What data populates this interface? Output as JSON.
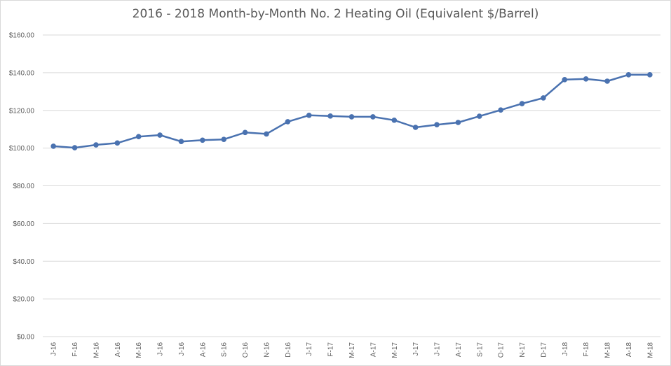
{
  "chart_data": {
    "type": "line",
    "title": "2016 - 2018 Month-by-Month No. 2 Heating Oil (Equivalent $/Barrel)",
    "xlabel": "",
    "ylabel": "",
    "ylim": [
      0,
      160
    ],
    "yticks": [
      "$0.00",
      "$20.00",
      "$40.00",
      "$60.00",
      "$80.00",
      "$100.00",
      "$120.00",
      "$140.00",
      "$160.00"
    ],
    "grid": true,
    "legend": "none",
    "categories": [
      "J-16",
      "F-16",
      "M-16",
      "A-16",
      "M-16",
      "J-16",
      "J-16",
      "A-16",
      "S-16",
      "O-16",
      "N-16",
      "D-16",
      "J-17",
      "F-17",
      "M-17",
      "A-17",
      "M-17",
      "J-17",
      "J-17",
      "A-17",
      "S-17",
      "O-17",
      "N-17",
      "D-17",
      "J-18",
      "F-18",
      "M-18",
      "A-18",
      "M-18"
    ],
    "series": [
      {
        "name": "",
        "color": "#4a72b0",
        "values": [
          101.0,
          100.2,
          101.7,
          102.7,
          106.1,
          106.9,
          103.5,
          104.2,
          104.6,
          108.3,
          107.5,
          114.0,
          117.4,
          117.0,
          116.6,
          116.6,
          114.8,
          111.0,
          112.4,
          113.6,
          116.9,
          120.2,
          123.6,
          126.6,
          136.3,
          136.7,
          135.5,
          138.9,
          138.9
        ]
      }
    ]
  }
}
